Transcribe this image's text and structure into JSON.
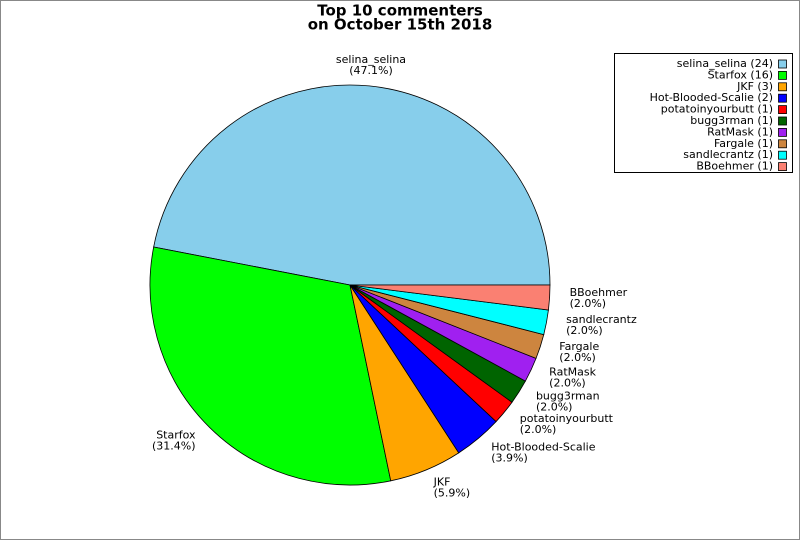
{
  "chart_data": {
    "type": "pie",
    "title": [
      "Top 10 commenters",
      "on October 15th 2018"
    ],
    "categories": [
      "selina_selina",
      "Starfox",
      "JKF",
      "Hot-Blooded-Scalie",
      "potatoinyourbutt",
      "bugg3rman",
      "RatMask",
      "Fargale",
      "sandlecrantz",
      "BBoehmer"
    ],
    "values": [
      47.1,
      31.4,
      5.9,
      3.9,
      2.0,
      2.0,
      2.0,
      2.0,
      2.0,
      2.0
    ],
    "value_labels": [
      "(47.1%)",
      "(31.4%)",
      "(5.9%)",
      "(3.9%)",
      "(2.0%)",
      "(2.0%)",
      "(2.0%)",
      "(2.0%)",
      "(2.0%)",
      "(2.0%)"
    ],
    "legend_labels": [
      "selina_selina (24)",
      "Starfox (16)",
      "JKF (3)",
      "Hot-Blooded-Scalie (2)",
      "potatoinyourbutt (1)",
      "bugg3rman (1)",
      "RatMask (1)",
      "Fargale (1)",
      "sandlecrantz (1)",
      "BBoehmer (1)"
    ],
    "colors": [
      "#87ceeb",
      "#00ff00",
      "#ffa500",
      "#0000ff",
      "#ff0000",
      "#006400",
      "#a020f0",
      "#cd853f",
      "#00ffff",
      "#fa8072"
    ],
    "legend": "upper right"
  }
}
